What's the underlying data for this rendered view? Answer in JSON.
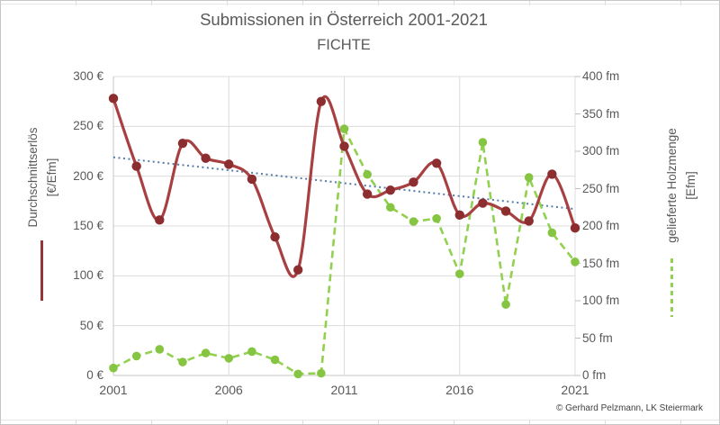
{
  "page": {
    "attribution": "© Gerhard Pelzmann, LK Steiermark"
  },
  "chart_data": {
    "type": "line",
    "title": "Submissionen in Österreich 2001-2021",
    "subtitle": "FICHTE",
    "x": [
      2001,
      2002,
      2003,
      2004,
      2005,
      2006,
      2007,
      2008,
      2009,
      2010,
      2011,
      2012,
      2013,
      2014,
      2015,
      2016,
      2017,
      2018,
      2019,
      2020,
      2021
    ],
    "x_axis": {
      "tick_labels": [
        "2001",
        "2006",
        "2011",
        "2016",
        "2021"
      ],
      "tick_years": [
        2001,
        2006,
        2011,
        2016,
        2021
      ]
    },
    "left_axis": {
      "label": "Durchschnittserlös [€/Efm]",
      "label_line1": "Durchschnittserlös",
      "label_line2": "[€/Efm]",
      "min": 0,
      "max": 300,
      "step": 50,
      "tick_labels": [
        "300 €",
        "250 €",
        "200 €",
        "150 €",
        "100 €",
        "50 €",
        "0 €"
      ]
    },
    "right_axis": {
      "label": "gelieferte Holzmenge [Efm]",
      "label_line1": "gelieferte Holzmenge",
      "label_line2": "[Efm]",
      "min": 0,
      "max": 400,
      "step": 50,
      "tick_labels": [
        "400 fm",
        "350 fm",
        "300 fm",
        "250 fm",
        "200 fm",
        "150 fm",
        "100 fm",
        "50 fm",
        "0 fm"
      ]
    },
    "series": [
      {
        "name": "Durchschnittserlös [€/Efm]",
        "axis": "left",
        "line_style": "solid-smooth",
        "color": "#A84042",
        "marker_color": "#8C2D2F",
        "values": [
          278,
          210,
          156,
          233,
          218,
          212,
          197,
          139,
          106,
          275,
          230,
          182,
          186,
          194,
          213,
          161,
          173,
          165,
          155,
          202,
          148
        ]
      },
      {
        "name": "gelieferte Holzmenge [Efm]",
        "axis": "right",
        "line_style": "dashed",
        "color": "#92D050",
        "marker_color": "#86C542",
        "values": [
          10,
          26,
          35,
          18,
          30,
          23,
          32,
          21,
          2,
          3,
          330,
          269,
          225,
          206,
          210,
          136,
          312,
          95,
          265,
          191,
          152
        ]
      }
    ],
    "trendline": {
      "of_series": "Durchschnittserlös [€/Efm]",
      "axis": "left",
      "start_value": 219,
      "end_value": 167,
      "color": "#557CAD",
      "style": "dotted"
    },
    "grid": true,
    "legend_position": "vertical-sides"
  }
}
